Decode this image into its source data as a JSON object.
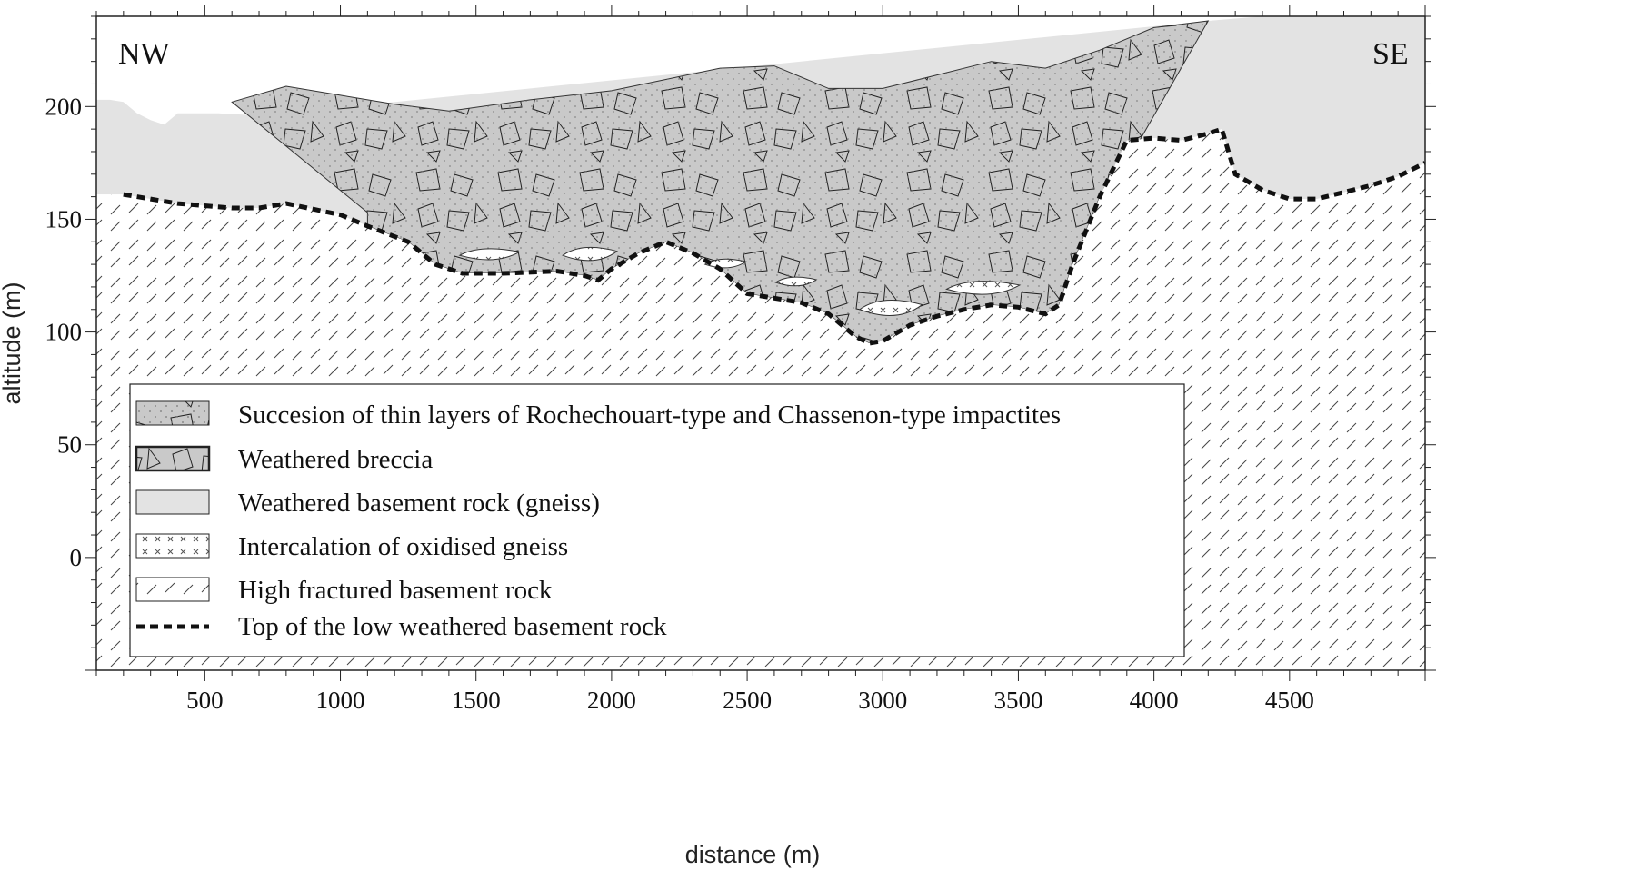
{
  "chart_data": {
    "type": "geologic-cross-section",
    "title": "",
    "xlabel": "distance (m)",
    "ylabel": "altitude (m)",
    "x_ticks": [
      500,
      1000,
      1500,
      2000,
      2500,
      3000,
      3500,
      4000,
      4500
    ],
    "y_ticks": [
      0,
      50,
      100,
      150,
      200
    ],
    "xlim": [
      100,
      5000
    ],
    "ylim": [
      -50,
      240
    ],
    "direction_left": "NW",
    "direction_right": "SE",
    "colors": {
      "weathered_basement": "#e3e3e3",
      "breccia": "#c9c9c9",
      "outline": "#1a1a1a"
    },
    "legend": [
      {
        "key": "impactites",
        "label": "Succesion of thin layers of Rochechouart-type and Chassenon-type impactites"
      },
      {
        "key": "breccia",
        "label": "Weathered breccia"
      },
      {
        "key": "weathered_basement",
        "label": "Weathered basement rock (gneiss)"
      },
      {
        "key": "oxidised_gneiss",
        "label": "Intercalation of oxidised gneiss"
      },
      {
        "key": "fractured_basement",
        "label": "High fractured basement rock"
      },
      {
        "key": "top_low_weathered",
        "label": "Top of the low weathered basement rock"
      }
    ],
    "low_weathered_top_line": [
      [
        200,
        161
      ],
      [
        300,
        159
      ],
      [
        400,
        157
      ],
      [
        600,
        155
      ],
      [
        700,
        155
      ],
      [
        800,
        157
      ],
      [
        1000,
        152
      ],
      [
        1100,
        147
      ],
      [
        1250,
        140
      ],
      [
        1350,
        130
      ],
      [
        1450,
        126
      ],
      [
        1600,
        126
      ],
      [
        1800,
        127
      ],
      [
        1900,
        125
      ],
      [
        1950,
        123
      ],
      [
        2000,
        128
      ],
      [
        2100,
        135
      ],
      [
        2200,
        140
      ],
      [
        2300,
        135
      ],
      [
        2400,
        128
      ],
      [
        2500,
        117
      ],
      [
        2600,
        115
      ],
      [
        2700,
        113
      ],
      [
        2800,
        108
      ],
      [
        2900,
        98
      ],
      [
        2950,
        95
      ],
      [
        3000,
        96
      ],
      [
        3100,
        103
      ],
      [
        3200,
        107
      ],
      [
        3300,
        110
      ],
      [
        3400,
        112
      ],
      [
        3500,
        111
      ],
      [
        3600,
        108
      ],
      [
        3650,
        112
      ],
      [
        3700,
        130
      ],
      [
        3800,
        160
      ],
      [
        3900,
        185
      ],
      [
        4000,
        186
      ],
      [
        4100,
        185
      ],
      [
        4200,
        188
      ],
      [
        4250,
        190
      ],
      [
        4300,
        170
      ],
      [
        4400,
        163
      ],
      [
        4500,
        159
      ],
      [
        4600,
        159
      ],
      [
        4700,
        162
      ],
      [
        4800,
        165
      ],
      [
        4900,
        169
      ],
      [
        5000,
        175
      ]
    ],
    "weathered_basement_top": [
      [
        100,
        203
      ],
      [
        150,
        203
      ],
      [
        200,
        202
      ],
      [
        250,
        197
      ],
      [
        300,
        194
      ],
      [
        350,
        192
      ],
      [
        400,
        197
      ],
      [
        550,
        197
      ],
      [
        700,
        196
      ],
      [
        4200,
        238
      ],
      [
        4400,
        240
      ],
      [
        5000,
        240
      ]
    ],
    "breccia_top": [
      [
        600,
        202
      ],
      [
        800,
        209
      ],
      [
        1000,
        205
      ],
      [
        1200,
        201
      ],
      [
        1400,
        198
      ],
      [
        1700,
        203
      ],
      [
        2000,
        207
      ],
      [
        2200,
        212
      ],
      [
        2400,
        217
      ],
      [
        2600,
        218
      ],
      [
        2800,
        208
      ],
      [
        3000,
        208
      ],
      [
        3200,
        214
      ],
      [
        3400,
        220
      ],
      [
        3600,
        217
      ],
      [
        3800,
        225
      ],
      [
        4000,
        235
      ],
      [
        4200,
        238
      ]
    ],
    "oxidised_gneiss_lenses": [
      {
        "x": 1550,
        "y": 134,
        "w": 220,
        "h": 5
      },
      {
        "x": 1920,
        "y": 134,
        "w": 200,
        "h": 6
      },
      {
        "x": 2420,
        "y": 130,
        "w": 150,
        "h": 4
      },
      {
        "x": 2680,
        "y": 122,
        "w": 150,
        "h": 4
      },
      {
        "x": 3030,
        "y": 110,
        "w": 230,
        "h": 7
      },
      {
        "x": 3370,
        "y": 119,
        "w": 270,
        "h": 6
      }
    ]
  }
}
